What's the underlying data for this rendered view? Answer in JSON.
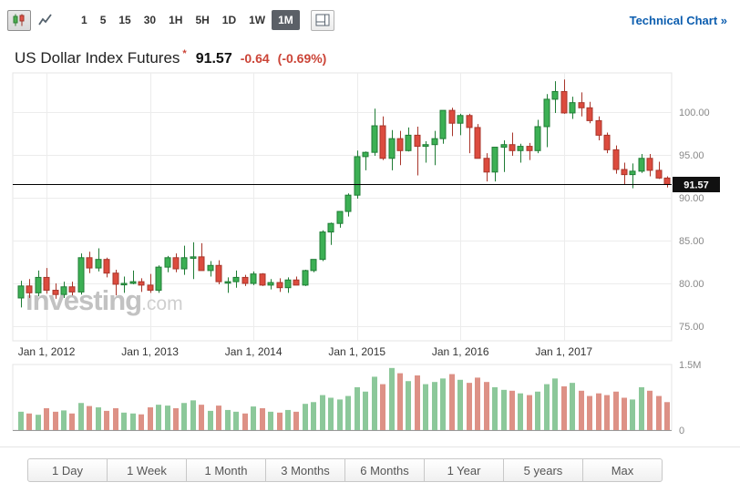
{
  "toolbar": {
    "chart_types": [
      {
        "name": "candlestick",
        "active": true
      },
      {
        "name": "line",
        "active": false
      }
    ],
    "intervals": [
      {
        "label": "1",
        "active": false
      },
      {
        "label": "5",
        "active": false
      },
      {
        "label": "15",
        "active": false
      },
      {
        "label": "30",
        "active": false
      },
      {
        "label": "1H",
        "active": false
      },
      {
        "label": "5H",
        "active": false
      },
      {
        "label": "1D",
        "active": false
      },
      {
        "label": "1W",
        "active": false
      },
      {
        "label": "1M",
        "active": true
      }
    ],
    "technical_chart_link": "Technical Chart »"
  },
  "header": {
    "title": "US Dollar Index Futures",
    "realtime_marker": "*",
    "price": "91.57",
    "change": "-0.64",
    "change_percent": "(-0.69%)"
  },
  "watermark": {
    "brand": "investing",
    "tld": ".com"
  },
  "range_buttons": [
    {
      "label": "1 Day"
    },
    {
      "label": "1 Week"
    },
    {
      "label": "1 Month"
    },
    {
      "label": "3 Months"
    },
    {
      "label": "6 Months"
    },
    {
      "label": "1 Year"
    },
    {
      "label": "5 years"
    },
    {
      "label": "Max"
    }
  ],
  "colors": {
    "up": "#3cb054",
    "up_border": "#1f7c35",
    "down": "#dc4b3e",
    "down_border": "#a8352a",
    "vol_up": "#8cc89a",
    "vol_down": "#dd9186",
    "price_line": "#000000",
    "price_tag_bg": "#111111",
    "link_blue": "#0d5eaf",
    "negative_red": "#cb4437",
    "grid": "#ececec",
    "axis_text": "#888888",
    "x_axis_text": "#333333"
  },
  "chart_data": {
    "type": "candlestick",
    "title": "US Dollar Index Futures",
    "interval": "1M",
    "legend_position": "none",
    "grid": true,
    "last_price": 91.57,
    "price_line": 91.57,
    "y_ticks": [
      100,
      95,
      90,
      85,
      80,
      75
    ],
    "ylim": [
      73.5,
      104.5
    ],
    "x_ticks": [
      {
        "index": 3,
        "label": "Jan 1, 2012"
      },
      {
        "index": 15,
        "label": "Jan 1, 2013"
      },
      {
        "index": 27,
        "label": "Jan 1, 2014"
      },
      {
        "index": 39,
        "label": "Jan 1, 2015"
      },
      {
        "index": 51,
        "label": "Jan 1, 2016"
      },
      {
        "index": 63,
        "label": "Jan 1, 2017"
      }
    ],
    "candles_ohlc": [
      [
        78.3,
        80.3,
        77.2,
        79.7
      ],
      [
        79.7,
        80.5,
        78.3,
        78.9
      ],
      [
        78.9,
        81.5,
        78.5,
        80.7
      ],
      [
        80.7,
        81.8,
        78.8,
        79.2
      ],
      [
        79.2,
        80.0,
        78.2,
        78.7
      ],
      [
        78.7,
        80.2,
        78.3,
        79.6
      ],
      [
        79.6,
        80.2,
        78.6,
        79.0
      ],
      [
        79.0,
        83.5,
        78.7,
        83.0
      ],
      [
        83.0,
        83.7,
        81.2,
        81.8
      ],
      [
        81.8,
        84.1,
        81.4,
        82.8
      ],
      [
        82.8,
        83.0,
        80.7,
        81.2
      ],
      [
        81.2,
        81.6,
        78.6,
        79.9
      ],
      [
        79.9,
        80.8,
        78.9,
        80.0
      ],
      [
        80.0,
        81.5,
        79.9,
        80.2
      ],
      [
        80.2,
        80.6,
        79.0,
        79.8
      ],
      [
        79.8,
        81.1,
        78.9,
        79.2
      ],
      [
        79.2,
        82.1,
        78.9,
        81.9
      ],
      [
        81.9,
        83.2,
        81.3,
        83.0
      ],
      [
        83.0,
        83.5,
        81.3,
        81.7
      ],
      [
        81.7,
        84.4,
        81.0,
        83.0
      ],
      [
        83.0,
        84.8,
        80.5,
        83.1
      ],
      [
        83.1,
        84.7,
        81.5,
        81.5
      ],
      [
        81.5,
        82.6,
        80.8,
        82.1
      ],
      [
        82.1,
        82.7,
        79.9,
        80.2
      ],
      [
        80.2,
        80.7,
        78.9,
        80.2
      ],
      [
        80.2,
        81.5,
        79.5,
        80.7
      ],
      [
        80.7,
        81.0,
        79.7,
        80.0
      ],
      [
        80.0,
        81.4,
        79.8,
        81.1
      ],
      [
        81.1,
        81.2,
        79.7,
        79.8
      ],
      [
        79.8,
        80.5,
        79.3,
        80.1
      ],
      [
        80.1,
        80.6,
        79.0,
        79.5
      ],
      [
        79.5,
        80.7,
        78.9,
        80.4
      ],
      [
        80.4,
        80.8,
        79.8,
        79.8
      ],
      [
        79.8,
        81.6,
        79.7,
        81.5
      ],
      [
        81.5,
        82.8,
        81.3,
        82.8
      ],
      [
        82.8,
        86.2,
        82.6,
        86.0
      ],
      [
        86.0,
        87.1,
        84.5,
        87.0
      ],
      [
        87.0,
        88.4,
        86.5,
        88.4
      ],
      [
        88.4,
        90.5,
        87.8,
        90.3
      ],
      [
        90.3,
        95.5,
        89.9,
        94.8
      ],
      [
        94.8,
        95.4,
        93.2,
        95.3
      ],
      [
        95.3,
        100.4,
        94.9,
        98.4
      ],
      [
        98.4,
        99.5,
        94.4,
        94.6
      ],
      [
        94.6,
        97.9,
        93.2,
        96.9
      ],
      [
        96.9,
        97.8,
        93.8,
        95.5
      ],
      [
        95.5,
        98.2,
        95.4,
        97.3
      ],
      [
        97.3,
        98.3,
        92.6,
        96.0
      ],
      [
        96.0,
        96.6,
        94.1,
        96.2
      ],
      [
        96.2,
        97.8,
        93.8,
        96.9
      ],
      [
        96.9,
        100.2,
        96.3,
        100.2
      ],
      [
        100.2,
        100.5,
        97.2,
        98.7
      ],
      [
        98.7,
        99.8,
        97.3,
        99.6
      ],
      [
        99.6,
        99.8,
        95.2,
        98.2
      ],
      [
        98.2,
        98.6,
        94.6,
        94.6
      ],
      [
        94.6,
        95.2,
        91.9,
        93.0
      ],
      [
        93.0,
        95.9,
        91.9,
        95.9
      ],
      [
        95.9,
        96.7,
        93.0,
        96.2
      ],
      [
        96.2,
        97.6,
        94.9,
        95.5
      ],
      [
        95.5,
        96.3,
        94.1,
        96.0
      ],
      [
        96.0,
        96.4,
        94.4,
        95.5
      ],
      [
        95.5,
        99.1,
        95.2,
        98.3
      ],
      [
        98.3,
        102.1,
        95.9,
        101.5
      ],
      [
        101.5,
        103.6,
        99.9,
        102.4
      ],
      [
        102.4,
        103.8,
        99.8,
        99.9
      ],
      [
        99.9,
        101.8,
        99.2,
        101.1
      ],
      [
        101.1,
        102.3,
        99.5,
        100.5
      ],
      [
        100.5,
        101.2,
        98.7,
        99.0
      ],
      [
        99.0,
        99.5,
        96.7,
        97.3
      ],
      [
        97.3,
        97.6,
        95.2,
        95.6
      ],
      [
        95.6,
        96.1,
        92.8,
        93.3
      ],
      [
        93.3,
        94.1,
        91.6,
        92.7
      ],
      [
        92.7,
        94.0,
        91.1,
        93.1
      ],
      [
        93.1,
        95.1,
        92.9,
        94.6
      ],
      [
        94.6,
        95.1,
        92.5,
        93.2
      ],
      [
        93.2,
        94.2,
        92.2,
        92.3
      ],
      [
        92.3,
        92.5,
        91.2,
        91.57
      ]
    ],
    "volume": {
      "axis_max": 1.5,
      "ticks": [
        "1.5M",
        "0"
      ],
      "unit": "millions",
      "values": [
        0.42,
        0.38,
        0.35,
        0.5,
        0.42,
        0.45,
        0.38,
        0.62,
        0.55,
        0.52,
        0.44,
        0.5,
        0.4,
        0.38,
        0.36,
        0.52,
        0.58,
        0.56,
        0.5,
        0.62,
        0.68,
        0.58,
        0.44,
        0.56,
        0.46,
        0.42,
        0.38,
        0.54,
        0.5,
        0.42,
        0.4,
        0.46,
        0.42,
        0.6,
        0.64,
        0.8,
        0.74,
        0.7,
        0.78,
        0.98,
        0.88,
        1.22,
        1.05,
        1.42,
        1.3,
        1.12,
        1.25,
        1.05,
        1.1,
        1.18,
        1.28,
        1.15,
        1.08,
        1.2,
        1.1,
        0.98,
        0.92,
        0.9,
        0.84,
        0.8,
        0.88,
        1.05,
        1.18,
        1.0,
        1.08,
        0.9,
        0.78,
        0.84,
        0.8,
        0.88,
        0.74,
        0.7,
        0.98,
        0.9,
        0.78,
        0.64
      ]
    }
  }
}
